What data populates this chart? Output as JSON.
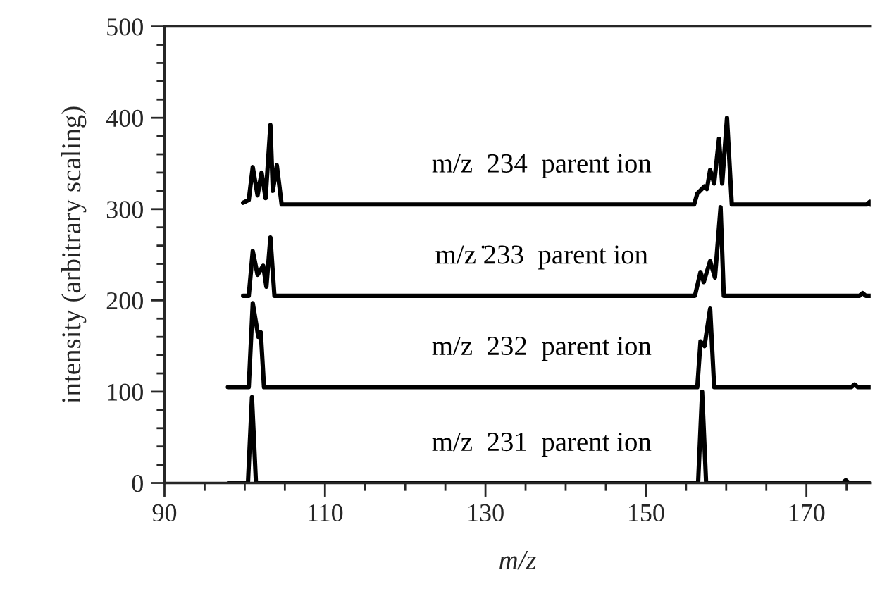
{
  "chart_data": {
    "type": "line",
    "xlabel": "m/z",
    "ylabel": "intensity (arbitrary scaling)",
    "xlim": [
      90,
      178
    ],
    "ylim": [
      0,
      500
    ],
    "xticks": [
      90,
      110,
      130,
      150,
      170
    ],
    "yticks": [
      0,
      100,
      200,
      300,
      400,
      500
    ],
    "grid": false,
    "legend": false,
    "marker": "none",
    "line_style": "solid",
    "series": [
      {
        "name": "m/z  231  parent ion",
        "color": "#000000",
        "x": [
          98,
          100.4,
          100.9,
          101.4,
          156.5,
          157,
          157.5,
          174.5,
          174.9,
          175.3,
          178
        ],
        "values": [
          0,
          0,
          94,
          0,
          0,
          100,
          0,
          0,
          3,
          0,
          0
        ]
      },
      {
        "name": "m/z  232  parent ion",
        "color": "#000000",
        "x": [
          97.9,
          100.5,
          101,
          101.7,
          102,
          102.4,
          156.4,
          156.8,
          157.3,
          158,
          158.5,
          175.6,
          176,
          176.4,
          178
        ],
        "values": [
          105,
          105,
          197,
          160,
          165,
          105,
          105,
          155,
          150,
          191,
          105,
          105,
          108,
          105,
          105
        ]
      },
      {
        "name": "m/z ̇233  parent ion",
        "color": "#000000",
        "x": [
          99.8,
          100.5,
          101,
          101.6,
          102.3,
          102.7,
          103.2,
          103.7,
          156.1,
          156.8,
          157.2,
          158,
          158.6,
          159.3,
          159.7,
          176.6,
          177,
          177.4,
          178
        ],
        "values": [
          205,
          205,
          254,
          228,
          238,
          215,
          269,
          205,
          205,
          231,
          220,
          243,
          225,
          302,
          205,
          205,
          208,
          205,
          205
        ]
      },
      {
        "name": "m/z  234  parent ion",
        "color": "#000000",
        "x": [
          99.8,
          100.5,
          101,
          101.6,
          102.1,
          102.6,
          103.2,
          103.5,
          104,
          104.6,
          156,
          156.4,
          157.3,
          157.6,
          158,
          158.5,
          159.1,
          159.5,
          160.1,
          160.7,
          177.5,
          177.9,
          178
        ],
        "values": [
          307,
          310,
          346,
          315,
          340,
          312,
          392,
          320,
          348,
          305,
          305,
          317,
          325,
          322,
          343,
          328,
          377,
          328,
          400,
          305,
          305,
          308,
          305
        ]
      }
    ]
  }
}
